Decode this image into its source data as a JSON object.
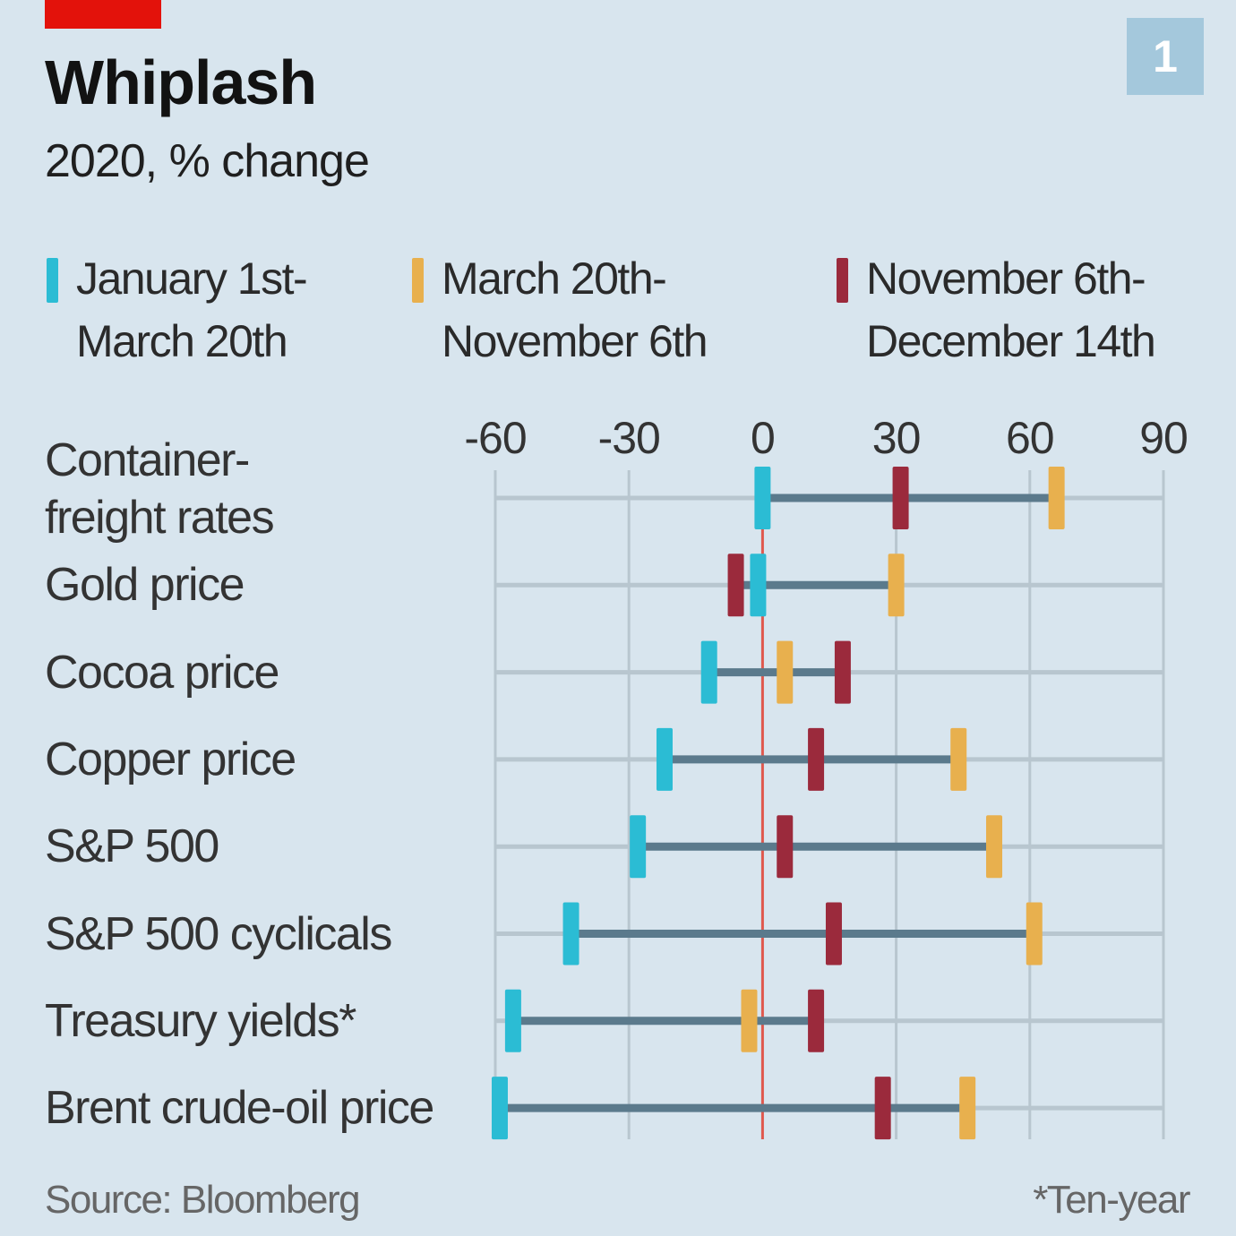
{
  "header": {
    "title": "Whiplash",
    "subtitle": "2020, % change",
    "badge": "1"
  },
  "colors": {
    "background": "#d8e5ee",
    "brand_red": "#e3120b",
    "period1": "#2bbcd4",
    "period2": "#e8b04e",
    "period3": "#9b2a3c",
    "connector": "#5b7a8c",
    "zero_line": "#e0584d",
    "grid": "#b8c6cf"
  },
  "legend": [
    {
      "line1": "January 1st-",
      "line2": "March 20th",
      "color_key": "period1"
    },
    {
      "line1": "March 20th-",
      "line2": "November 6th",
      "color_key": "period2"
    },
    {
      "line1": "November 6th-",
      "line2": "December 14th",
      "color_key": "period3"
    }
  ],
  "footer": {
    "source": "Source: Bloomberg",
    "note": "*Ten-year"
  },
  "chart_data": {
    "type": "dot-range",
    "title": "Whiplash",
    "subtitle": "2020, % change",
    "xlabel": "",
    "ylabel": "",
    "xlim": [
      -60,
      90
    ],
    "x_ticks": [
      -60,
      -30,
      0,
      30,
      60,
      90
    ],
    "x_tick_labels": [
      "-60",
      "-30",
      "0",
      "30",
      "60",
      "90"
    ],
    "grid": true,
    "legend_position": "top",
    "categories": [
      "Container-freight rates",
      "Gold price",
      "Cocoa price",
      "Copper price",
      "S&P 500",
      "S&P 500 cyclicals",
      "Treasury yields*",
      "Brent crude-oil price"
    ],
    "category_label_lines": [
      [
        "Container-",
        "freight rates"
      ],
      [
        "Gold price"
      ],
      [
        "Cocoa price"
      ],
      [
        "Copper price"
      ],
      [
        "S&P 500"
      ],
      [
        "S&P 500 cyclicals"
      ],
      [
        "Treasury yields*"
      ],
      [
        "Brent crude-oil price"
      ]
    ],
    "series": [
      {
        "name": "January 1st-March 20th",
        "color_key": "period1",
        "values": [
          0,
          -1,
          -12,
          -22,
          -28,
          -43,
          -56,
          -59
        ]
      },
      {
        "name": "March 20th-November 6th",
        "color_key": "period2",
        "values": [
          66,
          30,
          5,
          44,
          52,
          61,
          -3,
          46
        ]
      },
      {
        "name": "November 6th-December 14th",
        "color_key": "period3",
        "values": [
          31,
          -6,
          18,
          12,
          5,
          16,
          12,
          27
        ]
      }
    ],
    "source": "Source: Bloomberg",
    "footnote": "*Ten-year"
  }
}
